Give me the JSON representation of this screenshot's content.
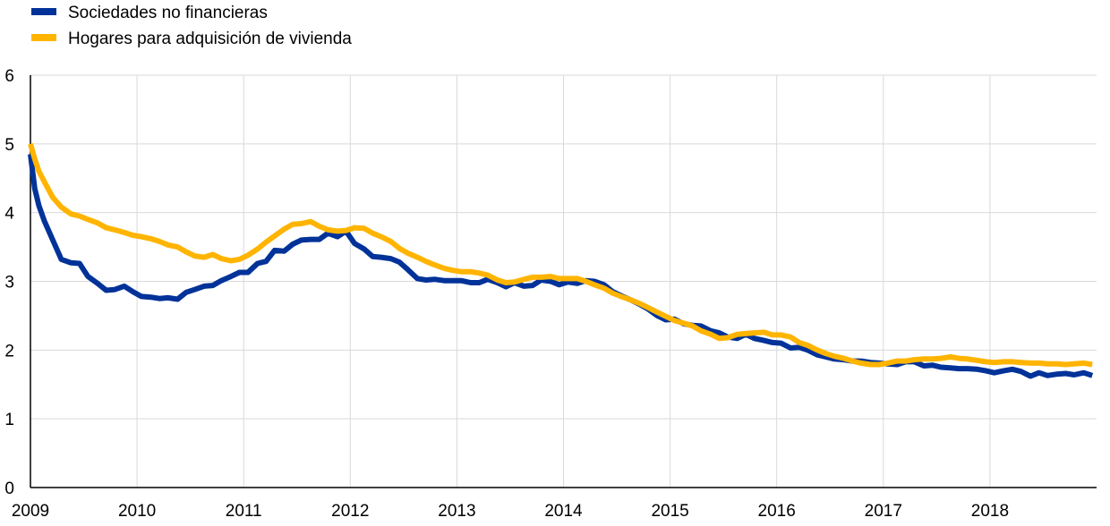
{
  "chart_data": {
    "type": "line",
    "title": "",
    "xlabel": "",
    "ylabel": "",
    "xlim": [
      2009.0,
      2019.0
    ],
    "ylim": [
      0,
      6
    ],
    "x_ticks": [
      2009,
      2010,
      2011,
      2012,
      2013,
      2014,
      2015,
      2016,
      2017,
      2018
    ],
    "y_ticks": [
      0,
      1,
      2,
      3,
      4,
      5,
      6
    ],
    "grid": true,
    "legend_position": "top-left",
    "series": [
      {
        "name": "Sociedades no financieras",
        "color": "#003299",
        "points": [
          [
            2009.0,
            4.85
          ],
          [
            2009.04,
            4.35
          ],
          [
            2009.08,
            4.1
          ],
          [
            2009.13,
            3.88
          ],
          [
            2009.21,
            3.6
          ],
          [
            2009.29,
            3.32
          ],
          [
            2009.38,
            3.27
          ],
          [
            2009.46,
            3.26
          ],
          [
            2009.54,
            3.07
          ],
          [
            2009.63,
            2.97
          ],
          [
            2009.71,
            2.87
          ],
          [
            2009.79,
            2.88
          ],
          [
            2009.88,
            2.93
          ],
          [
            2009.96,
            2.85
          ],
          [
            2010.04,
            2.78
          ],
          [
            2010.13,
            2.77
          ],
          [
            2010.21,
            2.75
          ],
          [
            2010.29,
            2.76
          ],
          [
            2010.38,
            2.74
          ],
          [
            2010.46,
            2.84
          ],
          [
            2010.54,
            2.88
          ],
          [
            2010.63,
            2.93
          ],
          [
            2010.71,
            2.94
          ],
          [
            2010.79,
            3.01
          ],
          [
            2010.88,
            3.07
          ],
          [
            2010.96,
            3.13
          ],
          [
            2011.04,
            3.13
          ],
          [
            2011.13,
            3.26
          ],
          [
            2011.21,
            3.29
          ],
          [
            2011.29,
            3.45
          ],
          [
            2011.38,
            3.44
          ],
          [
            2011.46,
            3.54
          ],
          [
            2011.54,
            3.6
          ],
          [
            2011.63,
            3.61
          ],
          [
            2011.71,
            3.61
          ],
          [
            2011.79,
            3.7
          ],
          [
            2011.88,
            3.65
          ],
          [
            2011.96,
            3.73
          ],
          [
            2012.04,
            3.55
          ],
          [
            2012.13,
            3.47
          ],
          [
            2012.21,
            3.36
          ],
          [
            2012.29,
            3.35
          ],
          [
            2012.38,
            3.33
          ],
          [
            2012.46,
            3.28
          ],
          [
            2012.54,
            3.17
          ],
          [
            2012.63,
            3.04
          ],
          [
            2012.71,
            3.02
          ],
          [
            2012.79,
            3.03
          ],
          [
            2012.88,
            3.01
          ],
          [
            2012.96,
            3.01
          ],
          [
            2013.04,
            3.01
          ],
          [
            2013.13,
            2.98
          ],
          [
            2013.21,
            2.98
          ],
          [
            2013.29,
            3.03
          ],
          [
            2013.38,
            2.98
          ],
          [
            2013.46,
            2.92
          ],
          [
            2013.54,
            2.98
          ],
          [
            2013.63,
            2.93
          ],
          [
            2013.71,
            2.94
          ],
          [
            2013.79,
            3.02
          ],
          [
            2013.88,
            3.0
          ],
          [
            2013.96,
            2.95
          ],
          [
            2014.04,
            2.99
          ],
          [
            2014.13,
            2.97
          ],
          [
            2014.21,
            3.01
          ],
          [
            2014.29,
            3.0
          ],
          [
            2014.38,
            2.95
          ],
          [
            2014.46,
            2.85
          ],
          [
            2014.54,
            2.79
          ],
          [
            2014.63,
            2.73
          ],
          [
            2014.71,
            2.67
          ],
          [
            2014.79,
            2.6
          ],
          [
            2014.88,
            2.5
          ],
          [
            2014.96,
            2.44
          ],
          [
            2015.04,
            2.45
          ],
          [
            2015.13,
            2.38
          ],
          [
            2015.21,
            2.36
          ],
          [
            2015.29,
            2.35
          ],
          [
            2015.38,
            2.28
          ],
          [
            2015.46,
            2.25
          ],
          [
            2015.54,
            2.19
          ],
          [
            2015.63,
            2.17
          ],
          [
            2015.71,
            2.23
          ],
          [
            2015.79,
            2.17
          ],
          [
            2015.88,
            2.14
          ],
          [
            2015.96,
            2.11
          ],
          [
            2016.04,
            2.1
          ],
          [
            2016.13,
            2.03
          ],
          [
            2016.21,
            2.04
          ],
          [
            2016.29,
            2.0
          ],
          [
            2016.38,
            1.93
          ],
          [
            2016.46,
            1.9
          ],
          [
            2016.54,
            1.87
          ],
          [
            2016.63,
            1.86
          ],
          [
            2016.71,
            1.84
          ],
          [
            2016.79,
            1.84
          ],
          [
            2016.88,
            1.82
          ],
          [
            2016.96,
            1.81
          ],
          [
            2017.04,
            1.8
          ],
          [
            2017.13,
            1.79
          ],
          [
            2017.21,
            1.83
          ],
          [
            2017.29,
            1.83
          ],
          [
            2017.38,
            1.77
          ],
          [
            2017.46,
            1.78
          ],
          [
            2017.54,
            1.75
          ],
          [
            2017.63,
            1.74
          ],
          [
            2017.71,
            1.73
          ],
          [
            2017.79,
            1.73
          ],
          [
            2017.88,
            1.72
          ],
          [
            2017.96,
            1.7
          ],
          [
            2018.04,
            1.67
          ],
          [
            2018.13,
            1.7
          ],
          [
            2018.21,
            1.72
          ],
          [
            2018.29,
            1.69
          ],
          [
            2018.38,
            1.62
          ],
          [
            2018.46,
            1.67
          ],
          [
            2018.54,
            1.63
          ],
          [
            2018.63,
            1.65
          ],
          [
            2018.71,
            1.66
          ],
          [
            2018.79,
            1.64
          ],
          [
            2018.88,
            1.67
          ],
          [
            2018.96,
            1.63
          ]
        ]
      },
      {
        "name": "Hogares para adquisición de vivienda",
        "color": "#FFB400",
        "points": [
          [
            2009.0,
            5.0
          ],
          [
            2009.04,
            4.78
          ],
          [
            2009.08,
            4.6
          ],
          [
            2009.13,
            4.45
          ],
          [
            2009.21,
            4.22
          ],
          [
            2009.29,
            4.08
          ],
          [
            2009.38,
            3.98
          ],
          [
            2009.46,
            3.95
          ],
          [
            2009.54,
            3.9
          ],
          [
            2009.63,
            3.85
          ],
          [
            2009.71,
            3.78
          ],
          [
            2009.79,
            3.75
          ],
          [
            2009.88,
            3.71
          ],
          [
            2009.96,
            3.67
          ],
          [
            2010.04,
            3.65
          ],
          [
            2010.13,
            3.62
          ],
          [
            2010.21,
            3.58
          ],
          [
            2010.29,
            3.53
          ],
          [
            2010.38,
            3.5
          ],
          [
            2010.46,
            3.43
          ],
          [
            2010.54,
            3.37
          ],
          [
            2010.63,
            3.35
          ],
          [
            2010.71,
            3.39
          ],
          [
            2010.79,
            3.33
          ],
          [
            2010.88,
            3.3
          ],
          [
            2010.96,
            3.32
          ],
          [
            2011.04,
            3.38
          ],
          [
            2011.13,
            3.47
          ],
          [
            2011.21,
            3.57
          ],
          [
            2011.29,
            3.66
          ],
          [
            2011.38,
            3.76
          ],
          [
            2011.46,
            3.83
          ],
          [
            2011.54,
            3.84
          ],
          [
            2011.63,
            3.87
          ],
          [
            2011.71,
            3.8
          ],
          [
            2011.79,
            3.75
          ],
          [
            2011.88,
            3.73
          ],
          [
            2011.96,
            3.74
          ],
          [
            2012.04,
            3.78
          ],
          [
            2012.13,
            3.77
          ],
          [
            2012.21,
            3.7
          ],
          [
            2012.29,
            3.65
          ],
          [
            2012.38,
            3.58
          ],
          [
            2012.46,
            3.48
          ],
          [
            2012.54,
            3.41
          ],
          [
            2012.63,
            3.35
          ],
          [
            2012.71,
            3.29
          ],
          [
            2012.79,
            3.24
          ],
          [
            2012.88,
            3.19
          ],
          [
            2012.96,
            3.16
          ],
          [
            2013.04,
            3.14
          ],
          [
            2013.13,
            3.14
          ],
          [
            2013.21,
            3.12
          ],
          [
            2013.29,
            3.09
          ],
          [
            2013.38,
            3.02
          ],
          [
            2013.46,
            2.98
          ],
          [
            2013.54,
            2.99
          ],
          [
            2013.63,
            3.03
          ],
          [
            2013.71,
            3.06
          ],
          [
            2013.79,
            3.06
          ],
          [
            2013.88,
            3.07
          ],
          [
            2013.96,
            3.04
          ],
          [
            2014.04,
            3.04
          ],
          [
            2014.13,
            3.04
          ],
          [
            2014.21,
            3.0
          ],
          [
            2014.29,
            2.95
          ],
          [
            2014.38,
            2.9
          ],
          [
            2014.46,
            2.83
          ],
          [
            2014.54,
            2.78
          ],
          [
            2014.63,
            2.73
          ],
          [
            2014.71,
            2.68
          ],
          [
            2014.79,
            2.62
          ],
          [
            2014.88,
            2.55
          ],
          [
            2014.96,
            2.49
          ],
          [
            2015.04,
            2.43
          ],
          [
            2015.13,
            2.39
          ],
          [
            2015.21,
            2.35
          ],
          [
            2015.29,
            2.28
          ],
          [
            2015.38,
            2.23
          ],
          [
            2015.46,
            2.17
          ],
          [
            2015.54,
            2.18
          ],
          [
            2015.63,
            2.23
          ],
          [
            2015.71,
            2.24
          ],
          [
            2015.79,
            2.25
          ],
          [
            2015.88,
            2.26
          ],
          [
            2015.96,
            2.22
          ],
          [
            2016.04,
            2.22
          ],
          [
            2016.13,
            2.19
          ],
          [
            2016.21,
            2.11
          ],
          [
            2016.29,
            2.07
          ],
          [
            2016.38,
            2.0
          ],
          [
            2016.46,
            1.95
          ],
          [
            2016.54,
            1.91
          ],
          [
            2016.63,
            1.88
          ],
          [
            2016.71,
            1.84
          ],
          [
            2016.79,
            1.81
          ],
          [
            2016.88,
            1.79
          ],
          [
            2016.96,
            1.79
          ],
          [
            2017.04,
            1.81
          ],
          [
            2017.13,
            1.84
          ],
          [
            2017.21,
            1.84
          ],
          [
            2017.29,
            1.86
          ],
          [
            2017.38,
            1.87
          ],
          [
            2017.46,
            1.87
          ],
          [
            2017.54,
            1.88
          ],
          [
            2017.63,
            1.9
          ],
          [
            2017.71,
            1.88
          ],
          [
            2017.79,
            1.87
          ],
          [
            2017.88,
            1.85
          ],
          [
            2017.96,
            1.83
          ],
          [
            2018.04,
            1.82
          ],
          [
            2018.13,
            1.83
          ],
          [
            2018.21,
            1.83
          ],
          [
            2018.29,
            1.82
          ],
          [
            2018.38,
            1.81
          ],
          [
            2018.46,
            1.81
          ],
          [
            2018.54,
            1.8
          ],
          [
            2018.63,
            1.8
          ],
          [
            2018.71,
            1.79
          ],
          [
            2018.79,
            1.8
          ],
          [
            2018.88,
            1.81
          ],
          [
            2018.96,
            1.79
          ]
        ]
      }
    ]
  }
}
